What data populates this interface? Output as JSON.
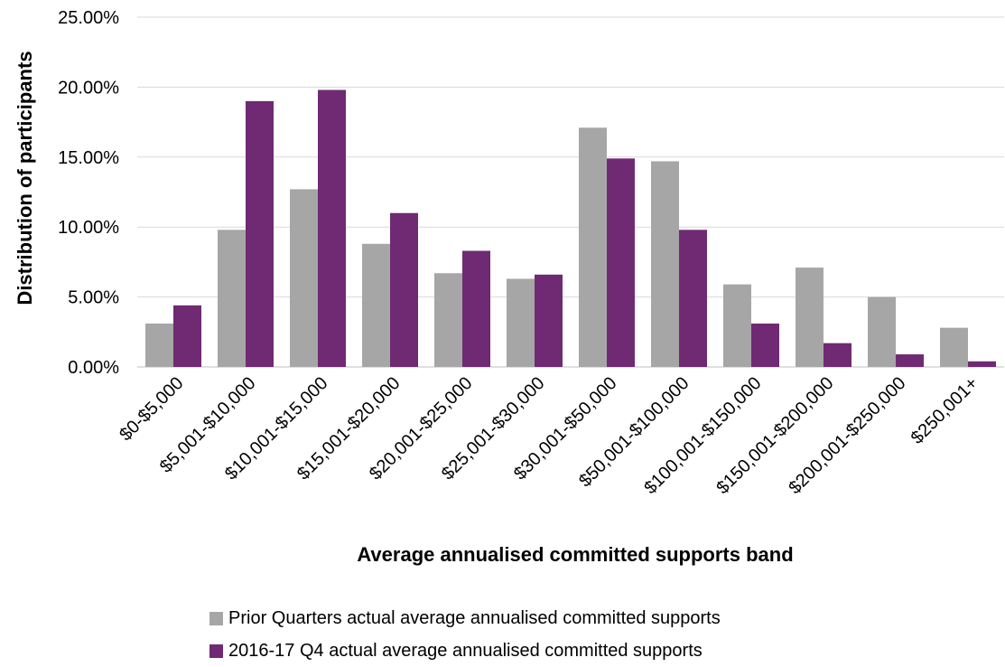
{
  "chart_data": {
    "type": "bar",
    "xlabel": "Average annualised committed supports band",
    "ylabel": "Distribution of participants",
    "ylim": [
      0,
      25
    ],
    "yticks": [
      "0.00%",
      "5.00%",
      "10.00%",
      "15.00%",
      "20.00%",
      "25.00%"
    ],
    "grid": "horizontal",
    "legend_position": "bottom",
    "categories": [
      "$0-$5,000",
      "$5,001-$10,000",
      "$10,001-$15,000",
      "$15,001-$20,000",
      "$20,001-$25,000",
      "$25,001-$30,000",
      "$30,001-$50,000",
      "$50,001-$100,000",
      "$100,001-$150,000",
      "$150,001-$200,000",
      "$200,001-$250,000",
      "$250,001+"
    ],
    "series": [
      {
        "name": "Prior Quarters actual average annualised committed supports",
        "color": "#a6a6a6",
        "values": [
          3.1,
          9.8,
          12.7,
          8.8,
          6.7,
          6.3,
          17.1,
          14.7,
          5.9,
          7.1,
          5.0,
          2.8
        ]
      },
      {
        "name": "2016-17 Q4 actual average annualised committed supports",
        "color": "#6f2a73",
        "values": [
          4.4,
          19.0,
          19.8,
          11.0,
          8.3,
          6.6,
          14.9,
          9.8,
          3.1,
          1.7,
          0.9,
          0.4
        ]
      }
    ]
  }
}
